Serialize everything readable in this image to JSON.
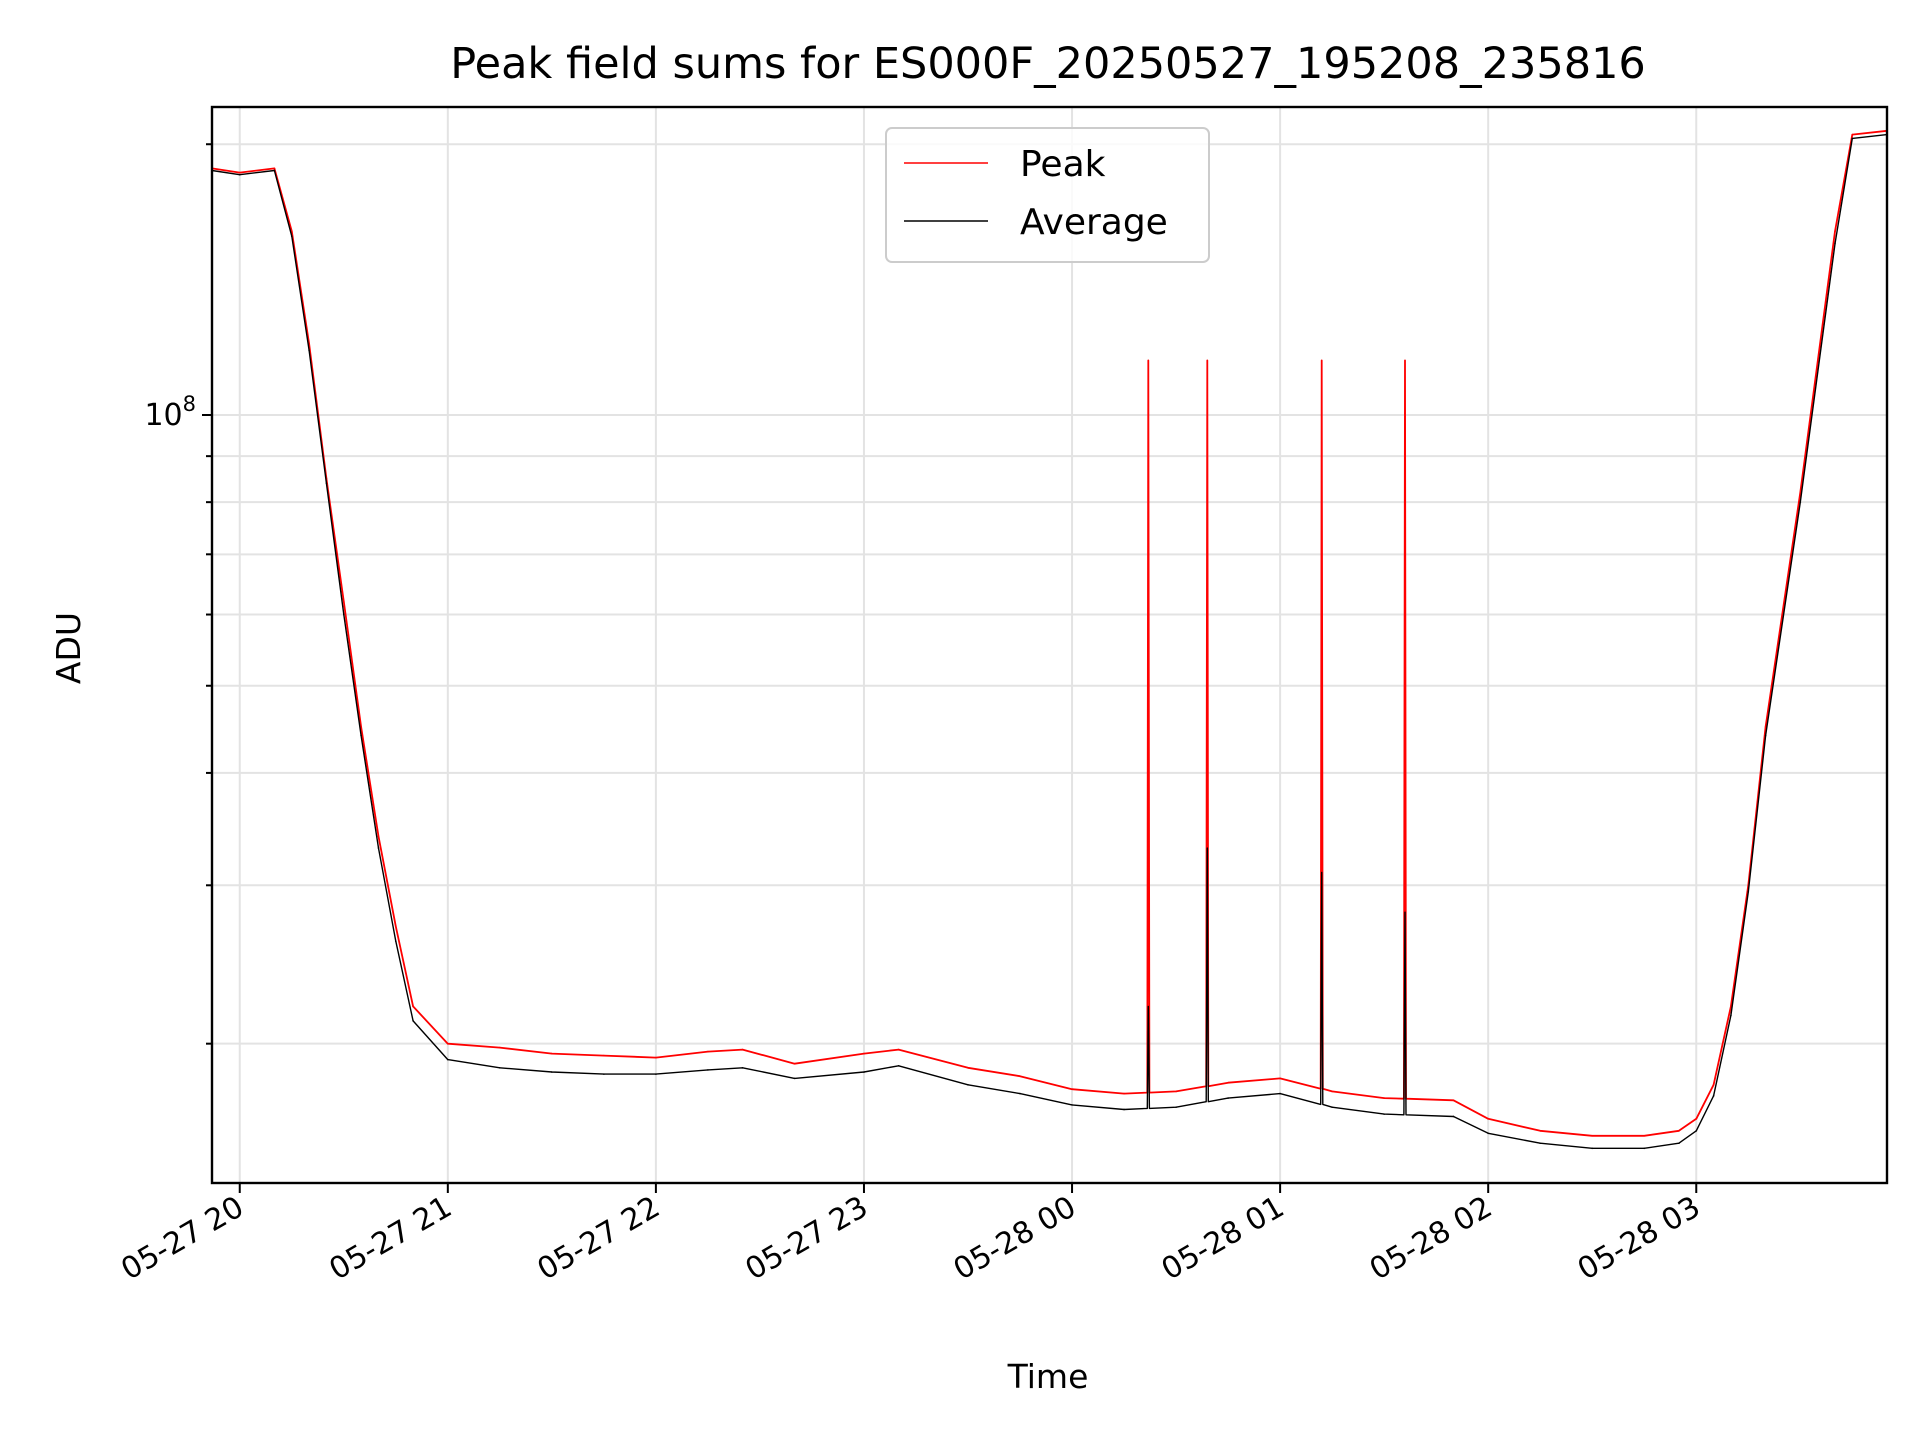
{
  "chart_data": {
    "type": "line",
    "title": "Peak field sums for ES000F_20250527_195208_235816",
    "xlabel": "Time",
    "ylabel": "ADU",
    "x_tick_labels": [
      "05-27 20",
      "05-27 21",
      "05-27 22",
      "05-27 23",
      "05-28 00",
      "05-28 01",
      "05-28 02",
      "05-28 03"
    ],
    "y_tick_labels": [
      {
        "base": "10",
        "exp": "8"
      }
    ],
    "yscale": "log",
    "xlim": [
      "2025-05-27 19:52",
      "2025-05-28 03:55"
    ],
    "ylim": [
      14000000,
      220000000
    ],
    "grid": true,
    "legend_position": "top-center",
    "series": [
      {
        "name": "Peak",
        "color": "#ff0000",
        "x": [
          "2025-05-27 19:52",
          "2025-05-27 20:00",
          "2025-05-27 20:10",
          "2025-05-27 20:15",
          "2025-05-27 20:20",
          "2025-05-27 20:25",
          "2025-05-27 20:30",
          "2025-05-27 20:35",
          "2025-05-27 20:40",
          "2025-05-27 20:45",
          "2025-05-27 20:50",
          "2025-05-27 21:00",
          "2025-05-27 21:15",
          "2025-05-27 21:30",
          "2025-05-27 21:45",
          "2025-05-27 22:00",
          "2025-05-27 22:15",
          "2025-05-27 22:25",
          "2025-05-27 22:40",
          "2025-05-27 23:00",
          "2025-05-27 23:10",
          "2025-05-27 23:30",
          "2025-05-27 23:45",
          "2025-05-28 00:00",
          "2025-05-28 00:15",
          "2025-05-28 00:30",
          "2025-05-28 00:45",
          "2025-05-28 01:00",
          "2025-05-28 01:15",
          "2025-05-28 01:30",
          "2025-05-28 01:50",
          "2025-05-28 02:00",
          "2025-05-28 02:15",
          "2025-05-28 02:30",
          "2025-05-28 02:45",
          "2025-05-28 02:55",
          "2025-05-28 03:00",
          "2025-05-28 03:05",
          "2025-05-28 03:10",
          "2025-05-28 03:15",
          "2025-05-28 03:20",
          "2025-05-28 03:30",
          "2025-05-28 03:40",
          "2025-05-28 03:45",
          "2025-05-28 03:55"
        ],
        "values": [
          188000000,
          186000000,
          188000000,
          160000000,
          120000000,
          85000000,
          62000000,
          45000000,
          34000000,
          27000000,
          22000000,
          20000000,
          19800000,
          19500000,
          19400000,
          19300000,
          19600000,
          19700000,
          19000000,
          19500000,
          19700000,
          18800000,
          18400000,
          17800000,
          17600000,
          17700000,
          18100000,
          18300000,
          17700000,
          17400000,
          17300000,
          16500000,
          16000000,
          15800000,
          15800000,
          16000000,
          16500000,
          18000000,
          22000000,
          30000000,
          45000000,
          82000000,
          160000000,
          205000000,
          207000000
        ],
        "spikes": [
          {
            "x": "2025-05-28 00:22",
            "value": 115000000
          },
          {
            "x": "2025-05-28 00:39",
            "value": 115000000
          },
          {
            "x": "2025-05-28 01:12",
            "value": 115000000
          },
          {
            "x": "2025-05-28 01:36",
            "value": 115000000
          }
        ]
      },
      {
        "name": "Average",
        "color": "#000000",
        "x": [
          "2025-05-27 19:52",
          "2025-05-27 20:00",
          "2025-05-27 20:10",
          "2025-05-27 20:15",
          "2025-05-27 20:20",
          "2025-05-27 20:25",
          "2025-05-27 20:30",
          "2025-05-27 20:35",
          "2025-05-27 20:40",
          "2025-05-27 20:45",
          "2025-05-27 20:50",
          "2025-05-27 21:00",
          "2025-05-27 21:15",
          "2025-05-27 21:30",
          "2025-05-27 21:45",
          "2025-05-27 22:00",
          "2025-05-27 22:15",
          "2025-05-27 22:25",
          "2025-05-27 22:40",
          "2025-05-27 23:00",
          "2025-05-27 23:10",
          "2025-05-27 23:30",
          "2025-05-27 23:45",
          "2025-05-28 00:00",
          "2025-05-28 00:15",
          "2025-05-28 00:30",
          "2025-05-28 00:45",
          "2025-05-28 01:00",
          "2025-05-28 01:15",
          "2025-05-28 01:30",
          "2025-05-28 01:50",
          "2025-05-28 02:00",
          "2025-05-28 02:15",
          "2025-05-28 02:30",
          "2025-05-28 02:45",
          "2025-05-28 02:55",
          "2025-05-28 03:00",
          "2025-05-28 03:05",
          "2025-05-28 03:10",
          "2025-05-28 03:15",
          "2025-05-28 03:20",
          "2025-05-28 03:30",
          "2025-05-28 03:40",
          "2025-05-28 03:45",
          "2025-05-28 03:55"
        ],
        "values": [
          187000000,
          185000000,
          187000000,
          158000000,
          118000000,
          84000000,
          60000000,
          44000000,
          33000000,
          26000000,
          21200000,
          19200000,
          18800000,
          18600000,
          18500000,
          18500000,
          18700000,
          18800000,
          18300000,
          18600000,
          18900000,
          18000000,
          17600000,
          17100000,
          16900000,
          17000000,
          17400000,
          17600000,
          17000000,
          16700000,
          16600000,
          15900000,
          15500000,
          15300000,
          15300000,
          15500000,
          16000000,
          17500000,
          21500000,
          29500000,
          44000000,
          80000000,
          155000000,
          203000000,
          205000000
        ],
        "spikes": [
          {
            "x": "2025-05-28 00:22",
            "value": 22000000
          },
          {
            "x": "2025-05-28 00:39",
            "value": 33000000
          },
          {
            "x": "2025-05-28 01:12",
            "value": 31000000
          },
          {
            "x": "2025-05-28 01:36",
            "value": 28000000
          }
        ]
      }
    ]
  }
}
